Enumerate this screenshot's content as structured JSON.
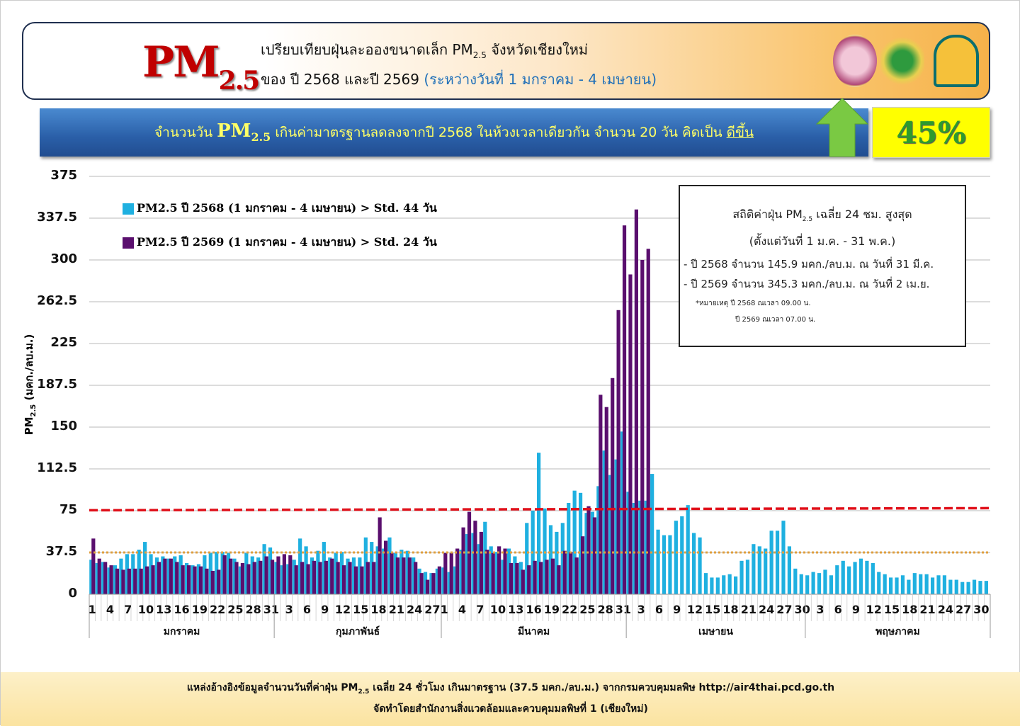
{
  "header": {
    "big_title_main": "PM",
    "big_title_sub": "2.5",
    "line1_pre": "เปรียบเทียบฝุ่นละอองขนาดเล็ก PM",
    "line1_sub": "2.5",
    "line1_post": " จังหวัดเชียงใหม่",
    "line2": "ของ ปี 2568 และปี 2569 ",
    "line2_period": "(ระหว่างวันที่ 1 มกราคม - 4 เมษายน)"
  },
  "banner": {
    "pre": "จำนวนวัน",
    "pm_main": "PM",
    "pm_sub": "2.5",
    "text": "เกินค่ามาตรฐานลดลงจากปี 2568 ในห้วงเวลาเดียวกัน จำนวน 20 วัน คิดเป็น",
    "status": "ดีขึ้น",
    "percent": "45%"
  },
  "colors": {
    "series_2568": "#1fb0e0",
    "series_2569": "#5a0f6e",
    "std_line": "#e0a040",
    "red_line": "#e0101a",
    "arrow": "#7ac943"
  },
  "stats_box": {
    "title_pre": "สถิติค่าฝุ่น PM",
    "title_sub": "2.5",
    "title_post": " เฉลี่ย 24 ชม. สูงสุด",
    "period": "(ตั้งแต่วันที่ 1 ม.ค. - 31 พ.ค.)",
    "line_2568": "- ปี 2568 จำนวน 145.9 มคก./ลบ.ม. ณ วันที่ 31 มี.ค.",
    "line_2569": "- ปี 2569 จำนวน 345.3 มคก./ลบ.ม. ณ วันที่ 2 เม.ย.",
    "note1": "*หมายเหตุ  ปี 2568 ณเวลา 09.00 น.",
    "note2": "ปี 2569 ณเวลา 07.00 น."
  },
  "footer": {
    "line1_pre": "แหล่งอ้างอิงข้อมูลจำนวนวันที่ค่าฝุ่น PM",
    "line1_sub": "2.5",
    "line1_post": " เฉลี่ย 24 ชั่วโมง เกินมาตรฐาน (37.5 มคก./ลบ.ม.) จากกรมควบคุมมลพิษ http://air4thai.pcd.go.th",
    "line2": "จัดทำโดยสำนักงานสิ่งแวดล้อมและควบคุมมลพิษที่ 1 (เชียงใหม่)"
  },
  "chart_data": {
    "type": "bar",
    "ylabel_main": "PM",
    "ylabel_sub": "2.5",
    "ylabel_unit": " (มคก./ลบ.ม.)",
    "ylim": [
      0,
      375
    ],
    "yticks": [
      "0",
      "37.5",
      "75",
      "112.5",
      "150",
      "187.5",
      "225",
      "262.5",
      "300",
      "337.5",
      "375"
    ],
    "grid": true,
    "legend_position": "top-left",
    "reference_lines": [
      {
        "name": "standard",
        "value": 37.5,
        "style": "dotted-orange"
      },
      {
        "name": "red-dashed",
        "value": 76,
        "style": "dashed-red"
      }
    ],
    "months": [
      {
        "name": "มกราคม",
        "days": 31,
        "tick_labels": [
          1,
          4,
          7,
          10,
          13,
          16,
          19,
          22,
          25,
          28,
          31
        ]
      },
      {
        "name": "กุมภาพันธ์",
        "days": 28,
        "tick_labels": [
          3,
          6,
          9,
          12,
          15,
          18,
          21,
          24,
          27
        ]
      },
      {
        "name": "มีนาคม",
        "days": 31,
        "tick_labels": [
          1,
          4,
          7,
          10,
          13,
          16,
          19,
          22,
          25,
          28,
          31
        ]
      },
      {
        "name": "เมษายน",
        "days": 30,
        "tick_labels": [
          3,
          6,
          9,
          12,
          15,
          18,
          21,
          24,
          27,
          30
        ]
      },
      {
        "name": "พฤษภาคม",
        "days": 31,
        "tick_labels": [
          3,
          6,
          9,
          12,
          15,
          18,
          21,
          24,
          27,
          30
        ]
      }
    ],
    "series": [
      {
        "name": "PM2.5 ปี 2568 (1 มกราคม - 4 เมษายน) > Std. 44 วัน",
        "color": "#1fb0e0",
        "values": [
          31,
          28,
          29,
          24,
          26,
          32,
          36,
          36,
          40,
          47,
          36,
          33,
          34,
          32,
          34,
          35,
          28,
          26,
          27,
          35,
          37,
          38,
          38,
          37,
          32,
          25,
          37,
          34,
          33,
          45,
          42,
          29,
          26,
          27,
          31,
          50,
          43,
          33,
          39,
          47,
          33,
          37,
          38,
          32,
          33,
          33,
          51,
          47,
          43,
          41,
          51,
          37,
          40,
          39,
          33,
          23,
          20,
          19,
          23,
          24,
          20,
          25,
          40,
          54,
          55,
          45,
          65,
          43,
          38,
          31,
          41,
          34,
          29,
          64,
          75,
          127,
          77,
          62,
          56,
          64,
          82,
          93,
          91,
          73,
          74,
          97,
          129,
          107,
          121,
          146,
          92,
          82,
          84,
          84,
          108,
          58,
          53,
          53,
          66,
          70,
          80,
          55,
          51,
          19,
          15,
          15,
          17,
          18,
          16,
          30,
          31,
          45,
          43,
          41,
          57,
          57,
          66,
          43,
          23,
          18,
          17,
          20,
          19,
          22,
          17,
          26,
          30,
          25,
          29,
          32,
          30,
          28,
          20,
          18,
          15,
          15,
          17,
          13,
          19,
          18,
          18,
          15,
          17,
          17,
          13,
          13,
          11,
          11,
          13,
          12,
          12
        ]
      },
      {
        "name": "PM2.5 ปี 2569 (1 มกราคม - 4 เมษายน) > Std. 24 วัน",
        "color": "#5a0f6e",
        "values": [
          50,
          32,
          29,
          26,
          23,
          22,
          23,
          23,
          23,
          25,
          26,
          29,
          32,
          32,
          29,
          26,
          26,
          25,
          25,
          23,
          21,
          22,
          35,
          32,
          29,
          28,
          27,
          29,
          30,
          34,
          31,
          34,
          36,
          35,
          26,
          29,
          27,
          30,
          29,
          30,
          32,
          29,
          26,
          29,
          25,
          25,
          29,
          29,
          69,
          48,
          37,
          33,
          33,
          33,
          29,
          19,
          13,
          19,
          25,
          37,
          37,
          41,
          60,
          74,
          66,
          56,
          40,
          37,
          43,
          41,
          28,
          28,
          22,
          26,
          30,
          29,
          31,
          32,
          26,
          39,
          38,
          33,
          52,
          79,
          69,
          179,
          168,
          194,
          255,
          331,
          287,
          345.3,
          300,
          310
        ]
      }
    ]
  }
}
